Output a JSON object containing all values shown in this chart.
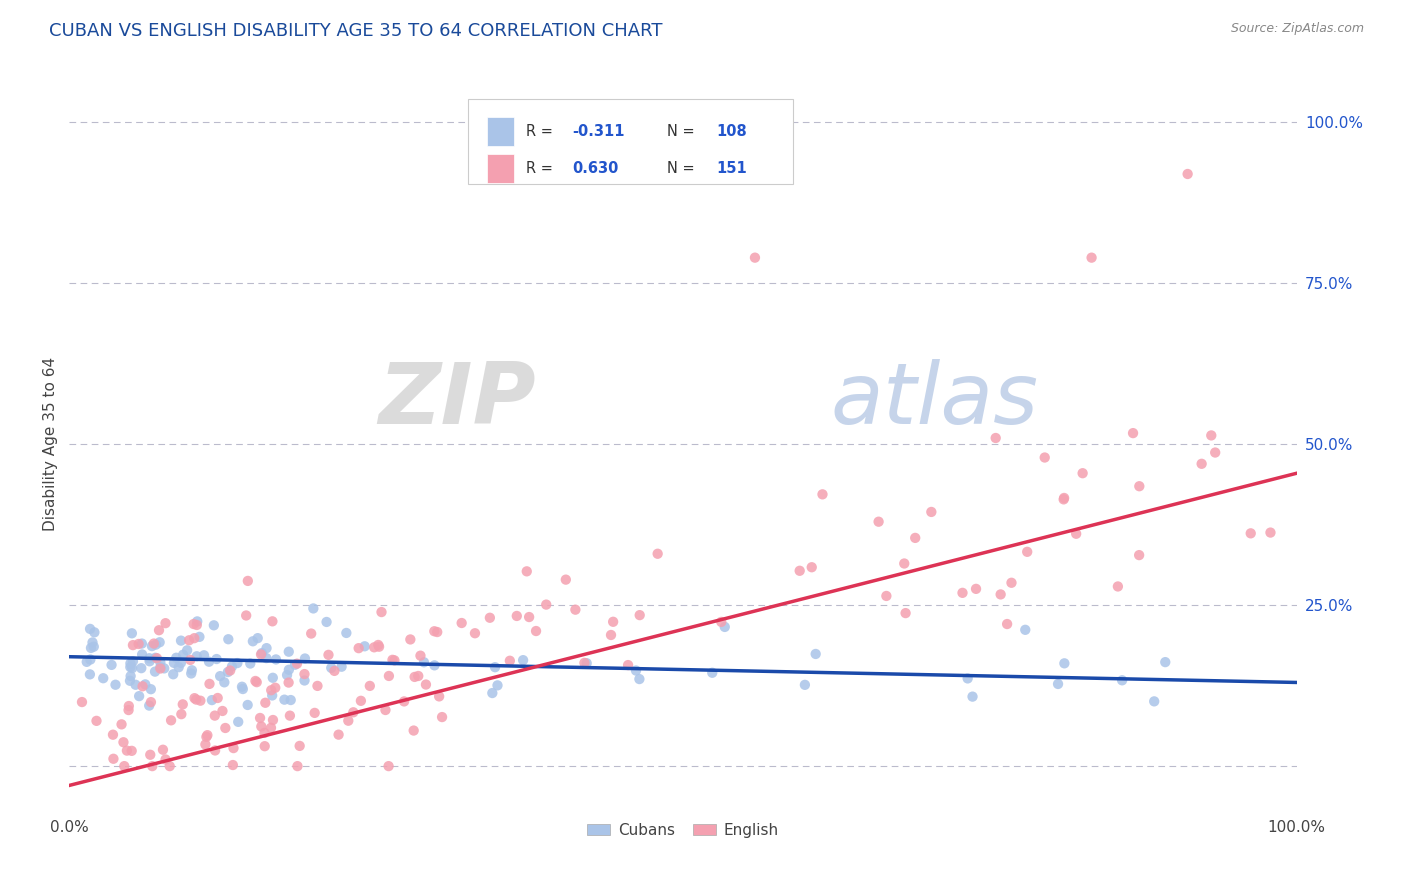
{
  "title": "CUBAN VS ENGLISH DISABILITY AGE 35 TO 64 CORRELATION CHART",
  "title_color": "#1a4a9a",
  "source_text": "Source: ZipAtlas.com",
  "ylabel": "Disability Age 35 to 64",
  "cubans_R": -0.311,
  "cubans_N": 108,
  "english_R": 0.63,
  "english_N": 151,
  "cubans_color": "#aac4e8",
  "english_color": "#f4a0b0",
  "cubans_line_color": "#1a4aaa",
  "english_line_color": "#dd3355",
  "background_color": "#ffffff",
  "watermark_ZIP_color": "#d0d8e8",
  "watermark_atlas_color": "#c0cce0",
  "grid_color": "#bbbbcc",
  "right_axis_color": "#2255cc",
  "title_fontsize": 13,
  "axis_fontsize": 11,
  "right_ytick_labels": [
    "",
    "25.0%",
    "50.0%",
    "75.0%",
    "100.0%"
  ],
  "right_ytick_values": [
    0.0,
    0.25,
    0.5,
    0.75,
    1.0
  ]
}
